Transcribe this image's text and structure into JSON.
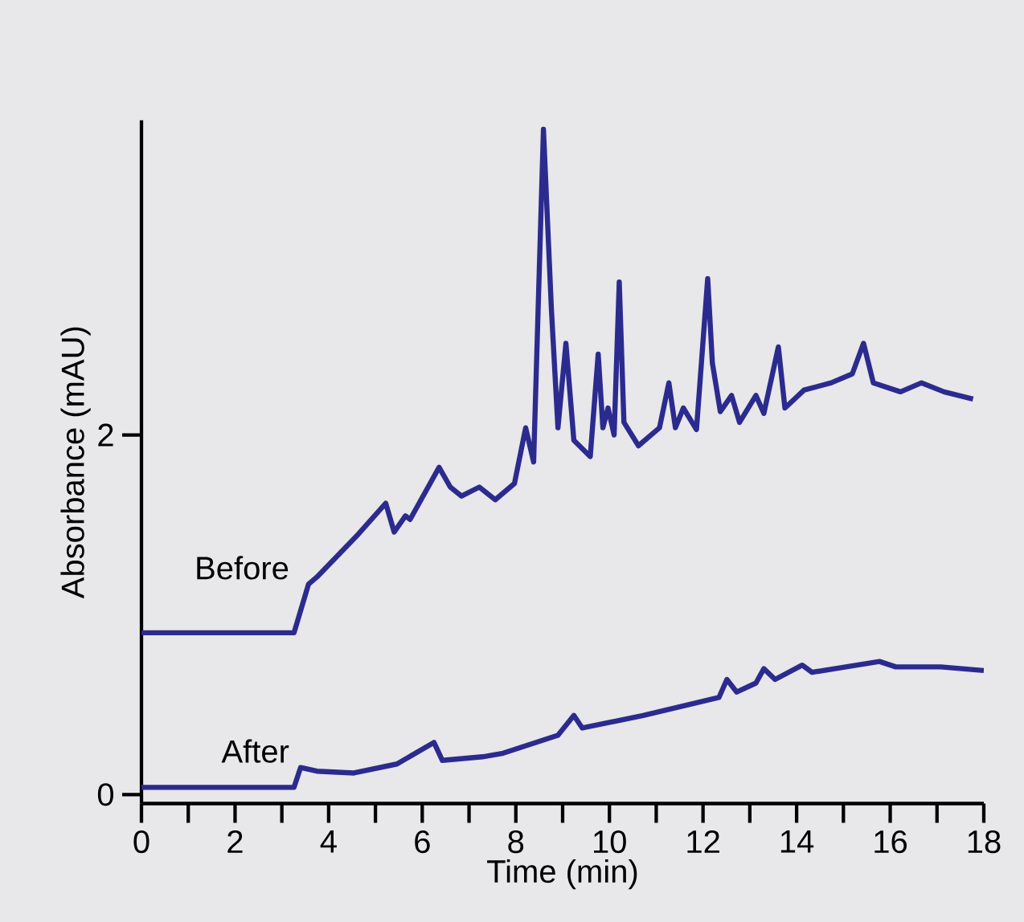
{
  "chart_data": {
    "type": "line",
    "xlabel": "Time (min)",
    "ylabel": "Absorbance (mAU)",
    "xlim": [
      0,
      18
    ],
    "ylim": [
      -0.05,
      3.75
    ],
    "xticks": [
      0,
      {
        "value": 1,
        "label": null
      },
      2,
      {
        "value": 3,
        "label": null
      },
      4,
      {
        "value": 5,
        "label": null
      },
      6,
      {
        "value": 7,
        "label": null
      },
      8,
      {
        "value": 9,
        "label": null
      },
      10,
      {
        "value": 11,
        "label": null
      },
      12,
      {
        "value": 13,
        "label": null
      },
      14,
      {
        "value": 15,
        "label": null
      },
      16,
      {
        "value": 17,
        "label": null
      },
      18
    ],
    "yticks": [
      0,
      2
    ],
    "grid": false,
    "legend": false,
    "marker": "none",
    "line_style": "solid",
    "series": [
      {
        "name": "Before",
        "color": "#2b2b8f",
        "x": [
          0,
          3.26,
          3.57,
          3.75,
          4.64,
          5.22,
          5.4,
          5.64,
          5.74,
          6.36,
          6.6,
          6.84,
          7.22,
          7.56,
          7.97,
          8.21,
          8.38,
          8.59,
          8.76,
          8.9,
          9.07,
          9.24,
          9.59,
          9.76,
          9.86,
          9.97,
          10.1,
          10.21,
          10.31,
          10.62,
          11.07,
          11.27,
          11.41,
          11.58,
          11.86,
          12.1,
          12.2,
          12.37,
          12.61,
          12.78,
          13.13,
          13.3,
          13.61,
          13.75,
          14.16,
          14.74,
          15.19,
          15.43,
          15.64,
          16.22,
          16.67,
          17.15,
          17.77
        ],
        "values": [
          0.9,
          0.9,
          1.17,
          1.21,
          1.45,
          1.62,
          1.46,
          1.55,
          1.53,
          1.82,
          1.71,
          1.66,
          1.71,
          1.64,
          1.73,
          2.04,
          1.85,
          3.7,
          2.7,
          2.04,
          2.51,
          1.97,
          1.88,
          2.45,
          2.04,
          2.15,
          2.0,
          2.85,
          2.07,
          1.94,
          2.04,
          2.29,
          2.04,
          2.15,
          2.03,
          2.87,
          2.4,
          2.13,
          2.22,
          2.07,
          2.22,
          2.12,
          2.49,
          2.15,
          2.25,
          2.29,
          2.34,
          2.51,
          2.29,
          2.24,
          2.29,
          2.24,
          2.2
        ]
      },
      {
        "name": "After",
        "color": "#2b2b8f",
        "x": [
          0,
          3.26,
          3.4,
          3.75,
          4.54,
          5.46,
          6.25,
          6.43,
          7.29,
          7.73,
          8.9,
          9.24,
          9.42,
          10.72,
          12.34,
          12.51,
          12.72,
          13.13,
          13.3,
          13.54,
          14.12,
          14.33,
          15.29,
          15.77,
          16.12,
          17.08,
          18
        ],
        "values": [
          0.04,
          0.04,
          0.15,
          0.13,
          0.12,
          0.17,
          0.29,
          0.19,
          0.21,
          0.23,
          0.33,
          0.44,
          0.37,
          0.44,
          0.54,
          0.64,
          0.57,
          0.62,
          0.7,
          0.64,
          0.72,
          0.68,
          0.72,
          0.74,
          0.71,
          0.71,
          0.69
        ]
      }
    ]
  }
}
